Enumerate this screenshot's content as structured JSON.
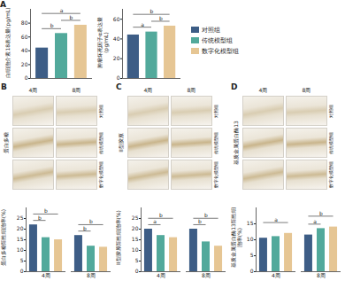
{
  "chart_data": [
    {
      "type": "bar",
      "panel_label": "A",
      "ylabel": "白细胞介素18表达量(pg/mL)",
      "categories": [
        "对照组",
        "传统模型组",
        "数字化模型组"
      ],
      "values": [
        44,
        65,
        77
      ],
      "colors": [
        "#3d5d86",
        "#52a99b",
        "#e6c694"
      ],
      "ylim": [
        0,
        100
      ],
      "yticks": [
        0,
        20,
        40,
        60,
        80
      ],
      "tick_labels": "y",
      "legend": "right",
      "annotations": [
        {
          "text": "b",
          "between": [
            "对照组",
            "传统模型组"
          ]
        },
        {
          "text": "b",
          "between": [
            "传统模型组",
            "数字化模型组"
          ]
        },
        {
          "text": "a",
          "between": [
            "对照组",
            "数字化模型组"
          ]
        }
      ]
    },
    {
      "type": "bar",
      "ylabel": "肿瘤坏死因子α表达量(pg/mL)",
      "categories": [
        "对照组",
        "传统模型组",
        "数字化模型组"
      ],
      "values": [
        44,
        47,
        53
      ],
      "colors": [
        "#3d5d86",
        "#52a99b",
        "#e6c694"
      ],
      "ylim": [
        0,
        70
      ],
      "yticks": [
        0,
        20,
        40,
        60
      ],
      "tick_labels": "y",
      "annotations": [
        {
          "text": "a",
          "between": [
            "对照组",
            "传统模型组"
          ]
        },
        {
          "text": "b",
          "between": [
            "传统模型组",
            "数字化模型组"
          ]
        },
        {
          "text": "b",
          "between": [
            "对照组",
            "数字化模型组"
          ]
        }
      ]
    },
    {
      "type": "bar",
      "panel_label": "B",
      "ylabel": "蛋白多糖阳性细胞率(%)",
      "image_panel": {
        "stain": "蛋白多糖",
        "columns": [
          "4周",
          "8周"
        ],
        "rows": [
          "对照组",
          "传统模型组",
          "数字化模型组"
        ]
      },
      "categories": [
        "4周",
        "8周"
      ],
      "series": [
        {
          "name": "对照组",
          "color": "#3d5d86",
          "values": [
            22,
            17
          ]
        },
        {
          "name": "传统模型组",
          "color": "#52a99b",
          "values": [
            16,
            12
          ]
        },
        {
          "name": "数字化模型组",
          "color": "#e6c694",
          "values": [
            15,
            11.5
          ]
        }
      ],
      "ylim": [
        0,
        30
      ],
      "yticks": [
        0,
        5,
        10,
        15,
        20,
        25
      ],
      "annotations": [
        {
          "text": "b",
          "period": "4周",
          "between": [
            "对照组",
            "传统模型组"
          ]
        },
        {
          "text": "b",
          "period": "4周",
          "between": [
            "对照组",
            "数字化模型组"
          ]
        },
        {
          "text": "b",
          "period": "8周",
          "between": [
            "对照组",
            "传统模型组"
          ]
        },
        {
          "text": "b",
          "period": "8周",
          "between": [
            "对照组",
            "数字化模型组"
          ]
        }
      ]
    },
    {
      "type": "bar",
      "panel_label": "C",
      "ylabel": "II型胶原阳性细胞率(%)",
      "image_panel": {
        "stain": "II型胶原",
        "columns": [
          "4周",
          "8周"
        ],
        "rows": [
          "对照组",
          "传统模型组",
          "数字化模型组"
        ]
      },
      "categories": [
        "4周",
        "8周"
      ],
      "series": [
        {
          "name": "对照组",
          "color": "#3d5d86",
          "values": [
            20,
            20
          ]
        },
        {
          "name": "传统模型组",
          "color": "#52a99b",
          "values": [
            17,
            14
          ]
        },
        {
          "name": "数字化模型组",
          "color": "#e6c694",
          "values": [
            16,
            12
          ]
        }
      ],
      "ylim": [
        0,
        30
      ],
      "yticks": [
        0,
        5,
        10,
        15,
        20,
        25
      ],
      "annotations": [
        {
          "text": "a",
          "period": "4周",
          "between": [
            "对照组",
            "传统模型组"
          ]
        },
        {
          "text": "b",
          "period": "4周",
          "between": [
            "对照组",
            "数字化模型组"
          ]
        },
        {
          "text": "b",
          "period": "8周",
          "between": [
            "对照组",
            "传统模型组"
          ]
        },
        {
          "text": "b",
          "period": "8周",
          "between": [
            "对照组",
            "数字化模型组"
          ]
        }
      ]
    },
    {
      "type": "bar",
      "panel_label": "D",
      "ylabel": "基质金属蛋白酶13阳性细胞率(%)",
      "image_panel": {
        "stain": "基质金属蛋白酶13",
        "columns": [
          "4周",
          "8周"
        ],
        "rows": [
          "对照组",
          "传统模型组",
          "数字化模型组"
        ]
      },
      "categories": [
        "4周",
        "8周"
      ],
      "series": [
        {
          "name": "对照组",
          "color": "#3d5d86",
          "values": [
            10.5,
            11.5
          ]
        },
        {
          "name": "传统模型组",
          "color": "#52a99b",
          "values": [
            11,
            13.5
          ]
        },
        {
          "name": "数字化模型组",
          "color": "#e6c694",
          "values": [
            12,
            14
          ]
        }
      ],
      "ylim": [
        0,
        20
      ],
      "yticks": [
        0,
        5,
        10,
        15
      ],
      "annotations": [
        {
          "text": "a",
          "period": "4周",
          "between": [
            "对照组",
            "数字化模型组"
          ]
        },
        {
          "text": "a",
          "period": "8周",
          "between": [
            "对照组",
            "传统模型组"
          ]
        },
        {
          "text": "b",
          "period": "8周",
          "between": [
            "对照组",
            "数字化模型组"
          ]
        }
      ]
    }
  ]
}
